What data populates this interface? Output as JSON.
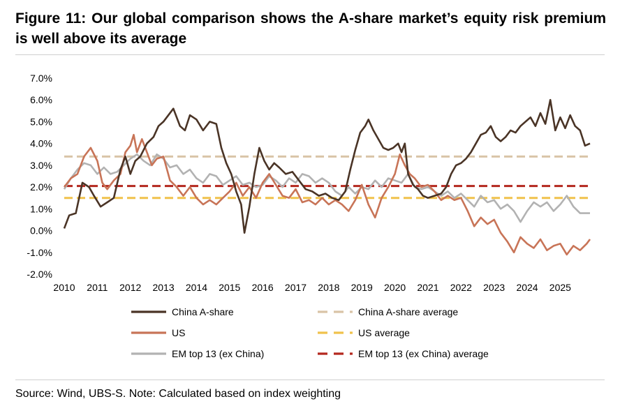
{
  "figure": {
    "title": "Figure 11: Our global comparison shows the A-share market’s equity risk premium is well above its average",
    "source": "Source: Wind, UBS-S. Note: Calculated based on index weighting"
  },
  "chart_data": {
    "type": "line",
    "title": "Figure 11: Our global comparison shows the A-share market’s equity risk premium is well above its average",
    "xlabel": "",
    "ylabel": "",
    "x_ticks": [
      "2010",
      "2011",
      "2012",
      "2013",
      "2014",
      "2015",
      "2016",
      "2017",
      "2018",
      "2019",
      "2020",
      "2021",
      "2022",
      "2023",
      "2024",
      "2025"
    ],
    "xlim": [
      2010,
      2025.9
    ],
    "y_ticks": [
      "7.0%",
      "6.0%",
      "5.0%",
      "4.0%",
      "3.0%",
      "2.0%",
      "1.0%",
      "0.0%",
      "-1.0%",
      "-2.0%"
    ],
    "ylim": [
      -2,
      7
    ],
    "grid": false,
    "legend_position": "bottom",
    "series": [
      {
        "name": "China A-share",
        "color": "#4a3426",
        "style": "solid",
        "x": [
          2010.0,
          2010.15,
          2010.35,
          2010.55,
          2010.75,
          2010.9,
          2011.1,
          2011.3,
          2011.5,
          2011.7,
          2011.85,
          2012.0,
          2012.15,
          2012.3,
          2012.5,
          2012.7,
          2012.85,
          2013.0,
          2013.15,
          2013.3,
          2013.5,
          2013.65,
          2013.8,
          2014.0,
          2014.2,
          2014.4,
          2014.6,
          2014.75,
          2014.9,
          2015.05,
          2015.2,
          2015.35,
          2015.45,
          2015.6,
          2015.75,
          2015.9,
          2016.05,
          2016.2,
          2016.35,
          2016.5,
          2016.7,
          2016.9,
          2017.1,
          2017.3,
          2017.5,
          2017.7,
          2017.9,
          2018.1,
          2018.3,
          2018.5,
          2018.65,
          2018.8,
          2018.95,
          2019.1,
          2019.2,
          2019.35,
          2019.5,
          2019.65,
          2019.8,
          2019.95,
          2020.1,
          2020.2,
          2020.3,
          2020.4,
          2020.55,
          2020.7,
          2020.85,
          2021.0,
          2021.2,
          2021.4,
          2021.55,
          2021.7,
          2021.85,
          2022.0,
          2022.15,
          2022.3,
          2022.45,
          2022.6,
          2022.75,
          2022.9,
          2023.05,
          2023.2,
          2023.35,
          2023.5,
          2023.65,
          2023.8,
          2023.95,
          2024.1,
          2024.25,
          2024.4,
          2024.55,
          2024.7,
          2024.85,
          2025.0,
          2025.15,
          2025.3,
          2025.45,
          2025.6,
          2025.75,
          2025.9
        ],
        "y": [
          0.1,
          0.7,
          0.8,
          2.2,
          2.0,
          1.6,
          1.1,
          1.3,
          1.5,
          2.8,
          3.4,
          2.6,
          3.2,
          3.4,
          4.0,
          4.3,
          4.8,
          5.0,
          5.3,
          5.6,
          4.8,
          4.6,
          5.3,
          5.1,
          4.6,
          5.0,
          4.9,
          3.8,
          3.1,
          2.6,
          1.8,
          1.2,
          -0.1,
          1.1,
          2.6,
          3.8,
          3.2,
          2.8,
          3.1,
          2.9,
          2.6,
          2.7,
          2.3,
          1.9,
          1.8,
          1.6,
          1.7,
          1.5,
          1.4,
          1.8,
          2.8,
          3.7,
          4.5,
          4.8,
          5.1,
          4.6,
          4.2,
          3.8,
          3.7,
          3.8,
          4.0,
          3.6,
          4.0,
          2.6,
          2.1,
          1.9,
          1.6,
          1.5,
          1.6,
          1.7,
          2.0,
          2.6,
          3.0,
          3.1,
          3.3,
          3.6,
          4.0,
          4.4,
          4.5,
          4.8,
          4.3,
          4.1,
          4.3,
          4.6,
          4.5,
          4.8,
          5.0,
          5.2,
          4.8,
          5.4,
          4.9,
          6.0,
          4.6,
          5.2,
          4.7,
          5.3,
          4.8,
          4.6,
          3.9,
          4.0
        ]
      },
      {
        "name": "US",
        "color": "#c87457",
        "style": "solid",
        "x": [
          2010.0,
          2010.2,
          2010.4,
          2010.6,
          2010.8,
          2011.0,
          2011.15,
          2011.3,
          2011.5,
          2011.7,
          2011.85,
          2012.0,
          2012.1,
          2012.2,
          2012.35,
          2012.5,
          2012.65,
          2012.8,
          2013.0,
          2013.2,
          2013.4,
          2013.6,
          2013.8,
          2014.0,
          2014.2,
          2014.4,
          2014.6,
          2014.8,
          2015.0,
          2015.2,
          2015.4,
          2015.6,
          2015.8,
          2016.0,
          2016.2,
          2016.4,
          2016.6,
          2016.8,
          2017.0,
          2017.2,
          2017.4,
          2017.6,
          2017.8,
          2018.0,
          2018.2,
          2018.4,
          2018.6,
          2018.8,
          2019.0,
          2019.2,
          2019.4,
          2019.6,
          2019.8,
          2020.0,
          2020.15,
          2020.3,
          2020.45,
          2020.6,
          2020.8,
          2021.0,
          2021.2,
          2021.4,
          2021.6,
          2021.8,
          2022.0,
          2022.2,
          2022.4,
          2022.6,
          2022.8,
          2023.0,
          2023.2,
          2023.4,
          2023.6,
          2023.8,
          2024.0,
          2024.2,
          2024.4,
          2024.6,
          2024.8,
          2025.0,
          2025.2,
          2025.4,
          2025.6,
          2025.8,
          2025.9
        ],
        "y": [
          2.0,
          2.4,
          2.6,
          3.4,
          3.8,
          3.2,
          2.2,
          1.9,
          2.3,
          2.6,
          3.6,
          3.9,
          4.4,
          3.6,
          4.2,
          3.6,
          3.0,
          3.3,
          3.4,
          2.3,
          2.0,
          1.6,
          2.0,
          1.5,
          1.2,
          1.4,
          1.2,
          1.5,
          1.8,
          2.2,
          1.6,
          2.0,
          1.5,
          2.2,
          2.6,
          2.1,
          1.6,
          1.5,
          1.9,
          1.3,
          1.4,
          1.2,
          1.5,
          1.2,
          1.4,
          1.2,
          0.9,
          1.4,
          2.1,
          1.2,
          0.6,
          1.5,
          2.0,
          2.6,
          3.5,
          3.0,
          2.6,
          2.4,
          2.0,
          2.1,
          1.8,
          1.4,
          1.6,
          1.4,
          1.5,
          0.9,
          0.2,
          0.6,
          0.3,
          0.5,
          -0.1,
          -0.5,
          -1.0,
          -0.3,
          -0.6,
          -0.8,
          -0.4,
          -0.9,
          -0.7,
          -0.6,
          -1.1,
          -0.7,
          -0.9,
          -0.6,
          -0.4
        ]
      },
      {
        "name": "EM top 13 (ex China)",
        "color": "#b2b2b2",
        "style": "solid",
        "x": [
          2010.0,
          2010.2,
          2010.4,
          2010.6,
          2010.8,
          2011.0,
          2011.2,
          2011.4,
          2011.6,
          2011.8,
          2012.0,
          2012.2,
          2012.4,
          2012.6,
          2012.8,
          2013.0,
          2013.2,
          2013.4,
          2013.6,
          2013.8,
          2014.0,
          2014.2,
          2014.4,
          2014.6,
          2014.8,
          2015.0,
          2015.2,
          2015.4,
          2015.6,
          2015.8,
          2016.0,
          2016.2,
          2016.4,
          2016.6,
          2016.8,
          2017.0,
          2017.2,
          2017.4,
          2017.6,
          2017.8,
          2018.0,
          2018.2,
          2018.4,
          2018.6,
          2018.8,
          2019.0,
          2019.2,
          2019.4,
          2019.6,
          2019.8,
          2020.0,
          2020.2,
          2020.4,
          2020.6,
          2020.8,
          2021.0,
          2021.2,
          2021.4,
          2021.6,
          2021.8,
          2022.0,
          2022.2,
          2022.4,
          2022.6,
          2022.8,
          2023.0,
          2023.2,
          2023.4,
          2023.6,
          2023.8,
          2024.0,
          2024.2,
          2024.4,
          2024.6,
          2024.8,
          2025.0,
          2025.2,
          2025.4,
          2025.6,
          2025.9
        ],
        "y": [
          1.9,
          2.4,
          2.8,
          3.1,
          3.0,
          2.6,
          2.9,
          2.6,
          2.7,
          3.0,
          3.3,
          3.5,
          3.2,
          3.0,
          3.5,
          3.3,
          2.9,
          3.0,
          2.6,
          2.8,
          2.4,
          2.2,
          2.6,
          2.5,
          2.1,
          2.3,
          2.5,
          2.1,
          2.2,
          2.0,
          2.1,
          2.5,
          2.3,
          2.0,
          2.4,
          2.2,
          2.6,
          2.5,
          2.2,
          2.4,
          2.2,
          1.8,
          1.6,
          2.0,
          1.7,
          2.0,
          1.9,
          2.3,
          2.0,
          2.4,
          2.3,
          2.2,
          2.6,
          2.0,
          1.9,
          2.0,
          1.8,
          1.6,
          1.8,
          1.5,
          1.7,
          1.4,
          1.1,
          1.6,
          1.3,
          1.4,
          1.0,
          1.2,
          0.9,
          0.4,
          0.9,
          1.3,
          1.1,
          1.3,
          0.9,
          1.2,
          1.6,
          1.1,
          0.8,
          0.8
        ]
      },
      {
        "name": "China A-share average",
        "color": "#d9c4a7",
        "style": "dashed",
        "x": [
          2010.0,
          2025.9
        ],
        "y": [
          3.4,
          3.4
        ]
      },
      {
        "name": "US average",
        "color": "#f0c24b",
        "style": "dashed",
        "x": [
          2010.0,
          2025.9
        ],
        "y": [
          1.5,
          1.5
        ]
      },
      {
        "name": "EM top 13 (ex China) average",
        "color": "#b4281e",
        "style": "dashed",
        "x": [
          2010.0,
          2025.9
        ],
        "y": [
          2.05,
          2.05
        ]
      }
    ],
    "legend": [
      {
        "label": "China A-share",
        "series": 0
      },
      {
        "label": "China A-share average",
        "series": 3
      },
      {
        "label": "US",
        "series": 1
      },
      {
        "label": "US average",
        "series": 4
      },
      {
        "label": "EM top 13 (ex China)",
        "series": 2
      },
      {
        "label": "EM top 13 (ex China) average",
        "series": 5
      }
    ]
  }
}
